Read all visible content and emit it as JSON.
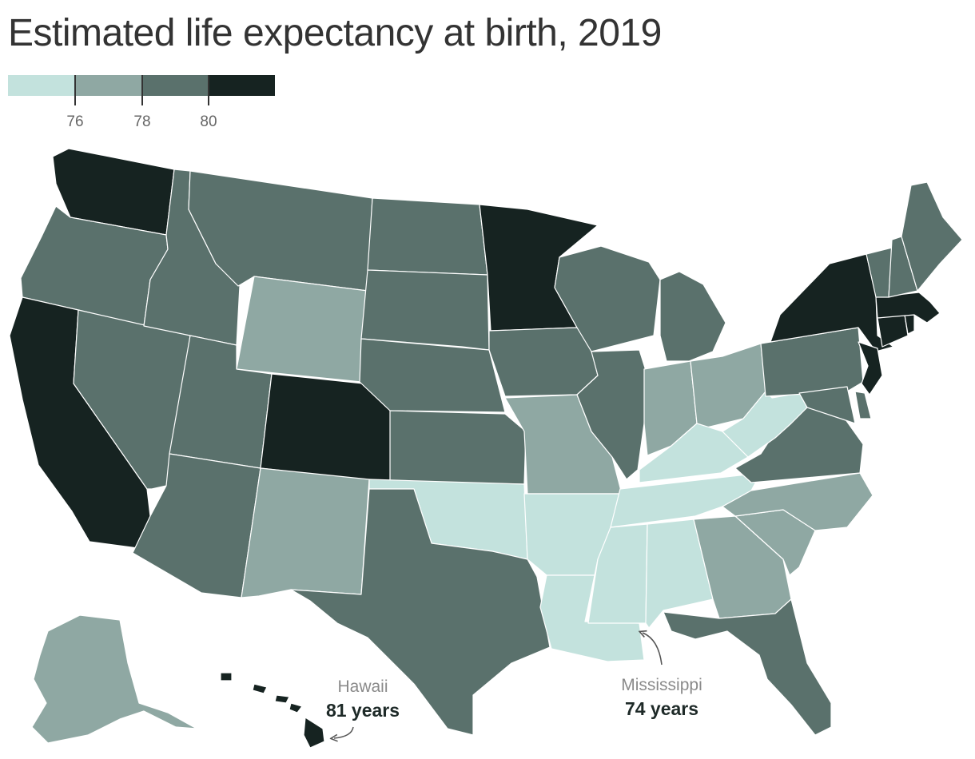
{
  "title": "Estimated life expectancy at birth, 2019",
  "colors": {
    "bin1": "#c3e2dd",
    "bin2": "#8fa8a3",
    "bin3": "#5a716c",
    "bin4": "#162321",
    "border": "#ffffff",
    "arrow": "#555555"
  },
  "legend": {
    "bins": [
      "bin1",
      "bin2",
      "bin3",
      "bin4"
    ],
    "ticks": [
      "76",
      "78",
      "80"
    ]
  },
  "chart_data": {
    "type": "choropleth",
    "title": "Estimated life expectancy at birth, 2019",
    "unit": "years",
    "legend_breaks": [
      76,
      78,
      80
    ],
    "bins": [
      {
        "range": "below 76",
        "color": "#c3e2dd"
      },
      {
        "range": "76–78",
        "color": "#8fa8a3"
      },
      {
        "range": "78–80",
        "color": "#5a716c"
      },
      {
        "range": "80 and above",
        "color": "#162321"
      }
    ],
    "states": {
      "WA": 4,
      "OR": 3,
      "CA": 4,
      "NV": 3,
      "ID": 3,
      "MT": 3,
      "WY": 2,
      "UT": 3,
      "CO": 4,
      "AZ": 3,
      "NM": 2,
      "ND": 3,
      "SD": 3,
      "NE": 3,
      "KS": 3,
      "OK": 1,
      "TX": 3,
      "MN": 4,
      "IA": 3,
      "MO": 2,
      "AR": 1,
      "LA": 1,
      "WI": 3,
      "IL": 3,
      "MI": 3,
      "IN": 2,
      "OH": 2,
      "KY": 1,
      "TN": 1,
      "MS": 1,
      "AL": 1,
      "GA": 2,
      "FL": 3,
      "SC": 2,
      "NC": 2,
      "VA": 3,
      "WV": 1,
      "PA": 3,
      "NY": 4,
      "NJ": 4,
      "DE": 3,
      "MD": 3,
      "CT": 4,
      "RI": 4,
      "MA": 4,
      "VT": 3,
      "NH": 3,
      "ME": 3,
      "AK": 2,
      "HI": 4
    },
    "annotations": [
      {
        "state": "Hawaii",
        "value": "81 years"
      },
      {
        "state": "Mississippi",
        "value": "74 years"
      }
    ]
  },
  "annotations": {
    "hawaii": {
      "name": "Hawaii",
      "value": "81 years"
    },
    "mississippi": {
      "name": "Mississippi",
      "value": "74 years"
    }
  }
}
